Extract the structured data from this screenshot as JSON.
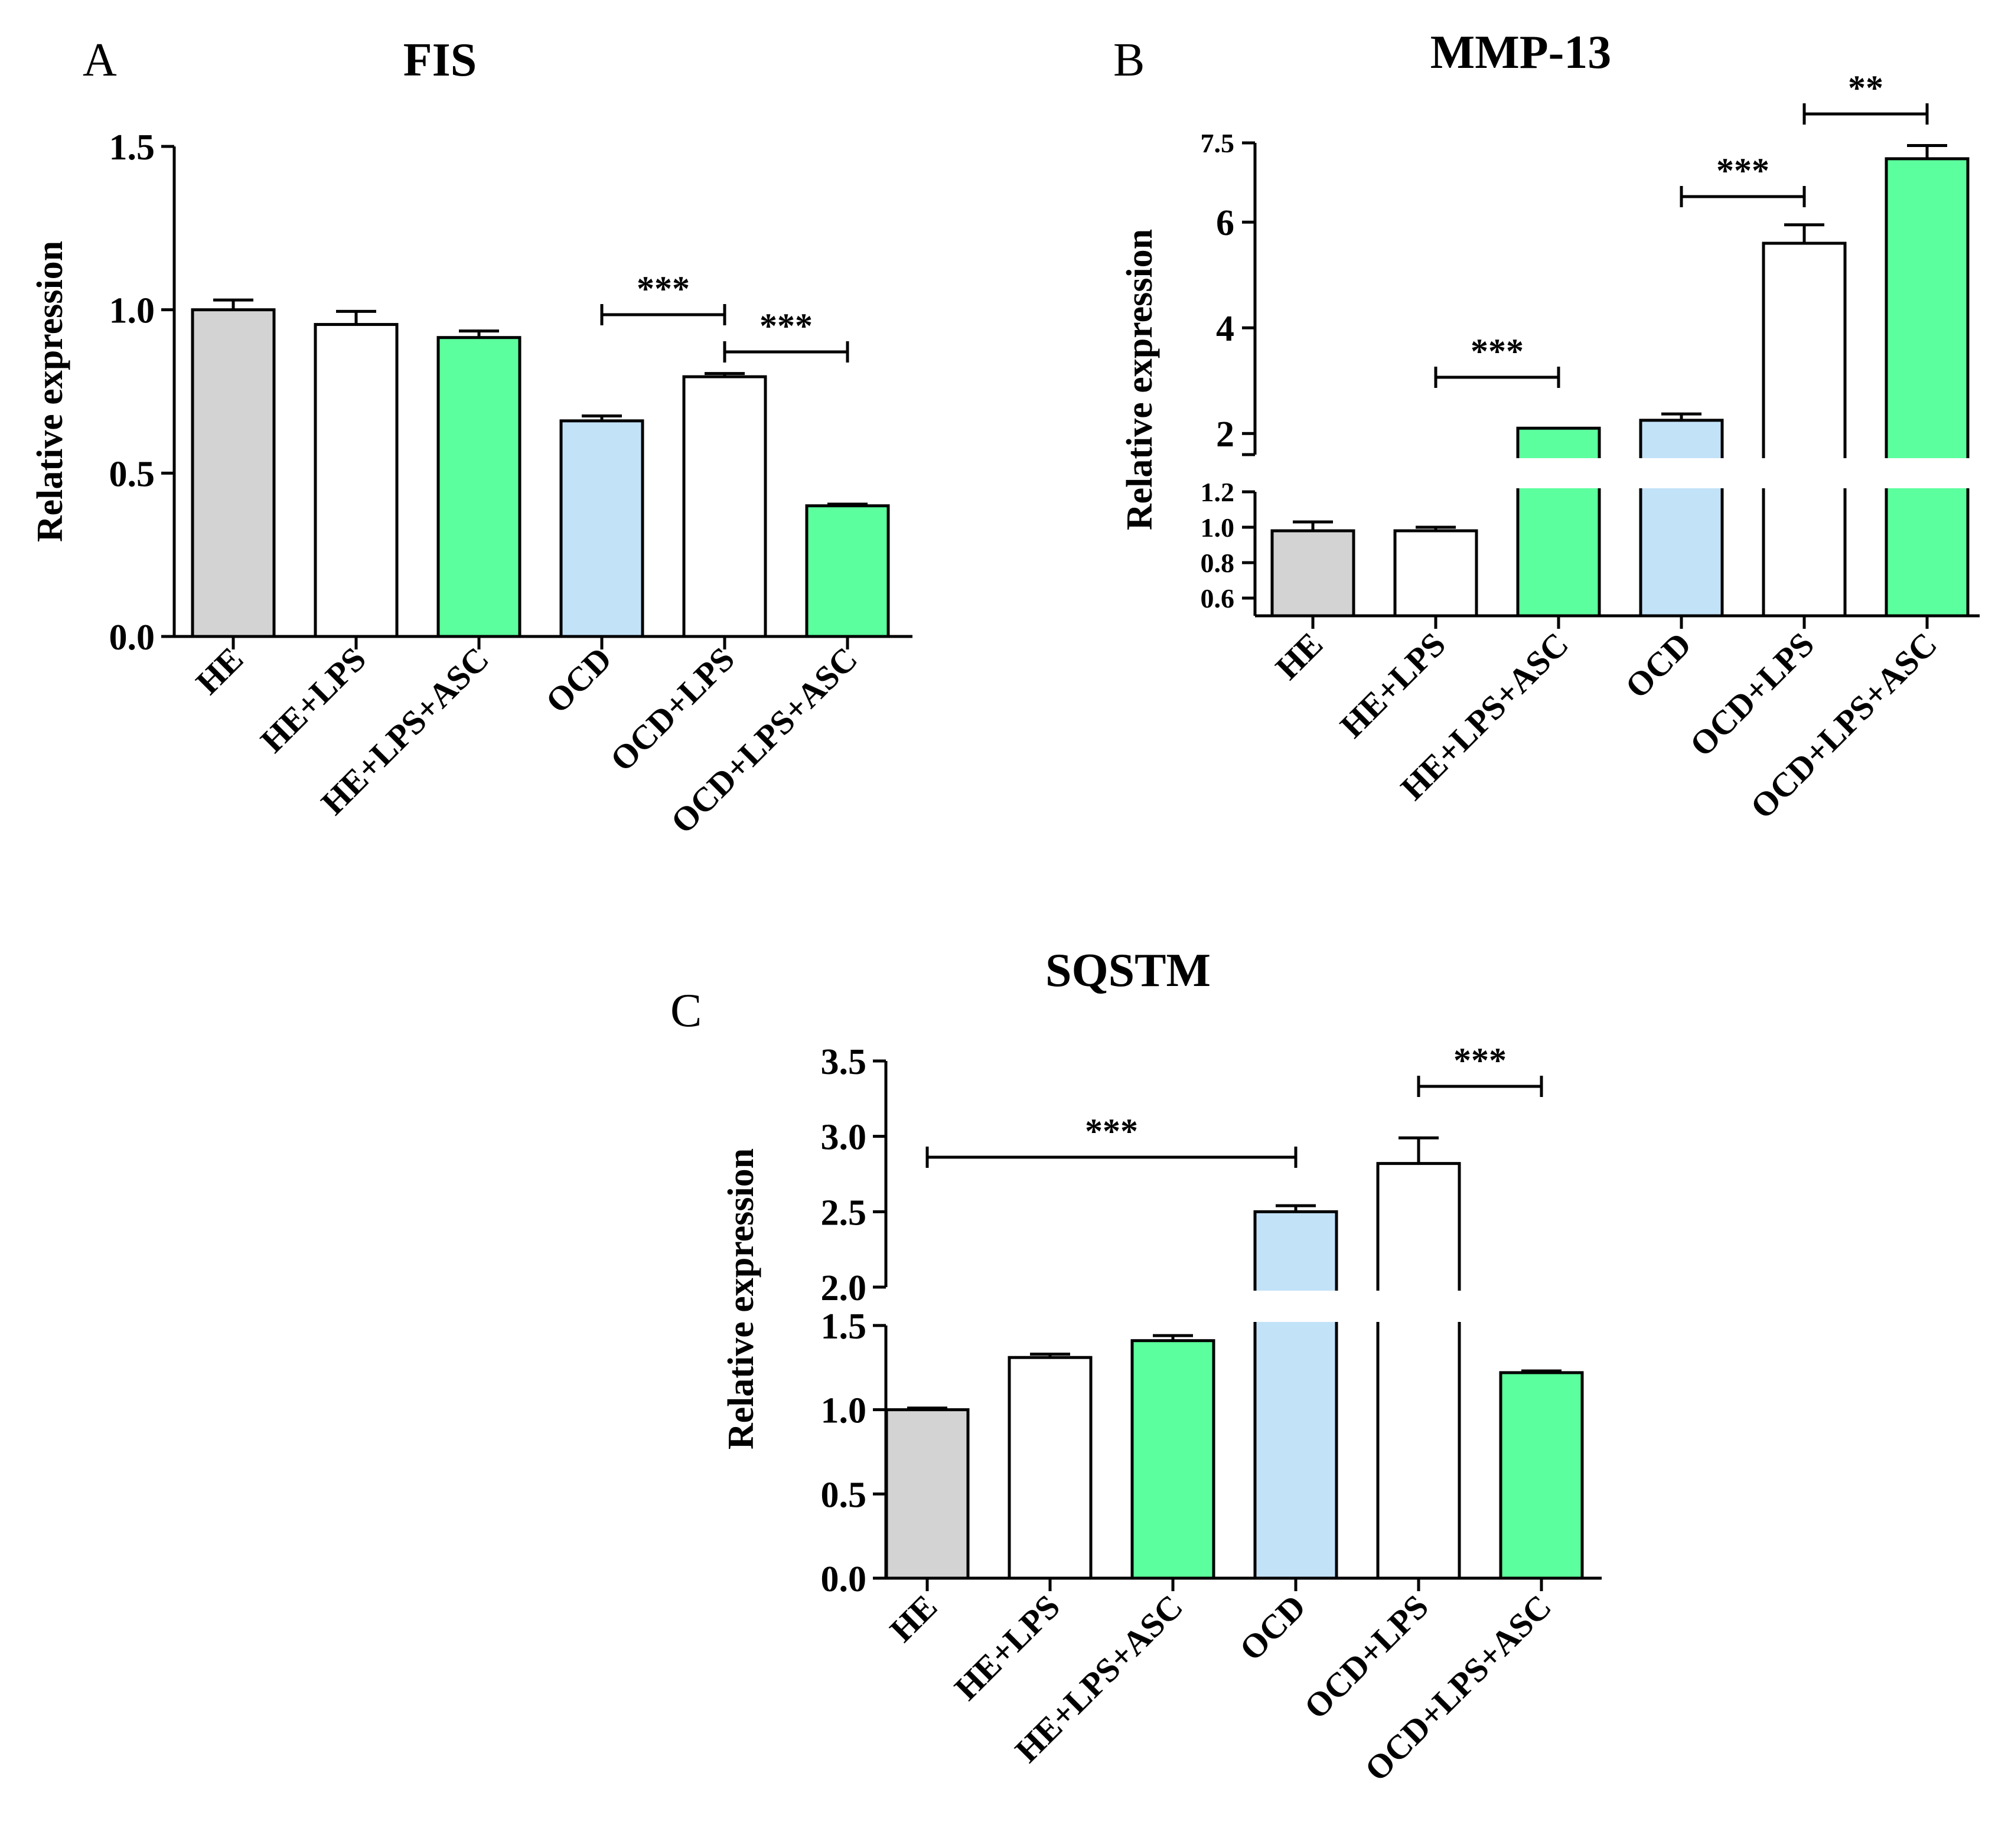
{
  "chart_data": [
    {
      "panel": "A",
      "title": "FIS",
      "type": "bar",
      "ylabel": "Relative expression",
      "categories": [
        "HE",
        "HE+LPS",
        "HE+LPS+ASC",
        "OCD",
        "OCD+LPS",
        "OCD+LPS+ASC"
      ],
      "values": [
        1.0,
        0.955,
        0.915,
        0.66,
        0.795,
        0.4
      ],
      "errors": [
        0.03,
        0.04,
        0.02,
        0.015,
        0.01,
        0.005
      ],
      "bar_colors": [
        "#d3d3d3",
        "#ffffff",
        "#5cff9d",
        "#c2e2f8",
        "#ffffff",
        "#5cff9d"
      ],
      "ylim": [
        0,
        1.5
      ],
      "yticks": [
        "0.0",
        "0.5",
        "1.0",
        "1.5"
      ],
      "comparisons": [
        {
          "from": 3,
          "to": 4,
          "label": "***"
        },
        {
          "from": 4,
          "to": 5,
          "label": "***"
        }
      ]
    },
    {
      "panel": "B",
      "title": "MMP-13",
      "type": "bar",
      "ylabel": "Relative expression",
      "broken_axis": true,
      "categories": [
        "HE",
        "HE+LPS",
        "HE+LPS+ASC",
        "OCD",
        "OCD+LPS",
        "OCD+LPS+ASC"
      ],
      "values": [
        0.98,
        0.98,
        2.1,
        2.25,
        5.6,
        7.2
      ],
      "errors": [
        0.05,
        0.02,
        0.0,
        0.12,
        0.35,
        0.25
      ],
      "bar_colors": [
        "#d3d3d3",
        "#ffffff",
        "#5cff9d",
        "#c2e2f8",
        "#ffffff",
        "#5cff9d"
      ],
      "lower_segment": {
        "ylim": [
          0.5,
          1.2
        ],
        "yticks": [
          "0.6",
          "0.8",
          "1.0",
          "1.2"
        ]
      },
      "upper_segment": {
        "ylim": [
          1.6,
          7.5
        ],
        "yticks": [
          "2",
          "4",
          "6",
          "7.5"
        ]
      },
      "comparisons": [
        {
          "from": 1,
          "to": 2,
          "label": "***"
        },
        {
          "from": 3,
          "to": 4,
          "label": "***"
        },
        {
          "from": 4,
          "to": 5,
          "label": "**"
        }
      ]
    },
    {
      "panel": "C",
      "title": "SQSTM",
      "type": "bar",
      "ylabel": "Relative expression",
      "broken_axis": true,
      "categories": [
        "HE",
        "HE+LPS",
        "HE+LPS+ASC",
        "OCD",
        "OCD+LPS",
        "OCD+LPS+ASC"
      ],
      "values": [
        1.0,
        1.31,
        1.41,
        2.5,
        2.82,
        1.22
      ],
      "errors": [
        0.01,
        0.02,
        0.03,
        0.04,
        0.17,
        0.01
      ],
      "bar_colors": [
        "#d3d3d3",
        "#ffffff",
        "#5cff9d",
        "#c2e2f8",
        "#ffffff",
        "#5cff9d"
      ],
      "lower_segment": {
        "ylim": [
          0,
          1.5
        ],
        "yticks": [
          "0.0",
          "0.5",
          "1.0",
          "1.5"
        ]
      },
      "upper_segment": {
        "ylim": [
          2.0,
          3.5
        ],
        "yticks": [
          "2.0",
          "2.5",
          "3.0",
          "3.5"
        ]
      },
      "comparisons": [
        {
          "from": 0,
          "to": 3,
          "label": "***"
        },
        {
          "from": 4,
          "to": 5,
          "label": "***"
        }
      ]
    }
  ]
}
